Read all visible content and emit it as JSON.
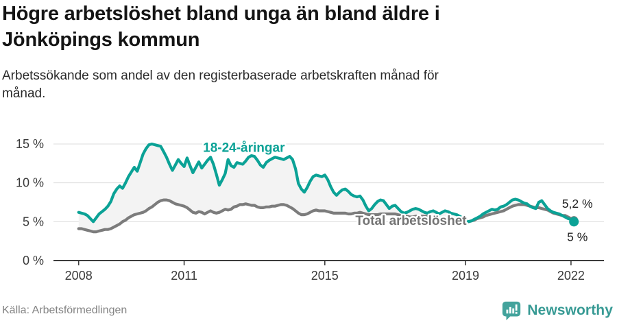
{
  "header": {
    "title": "Högre arbetslöshet bland unga än bland äldre i Jönköpings kommun",
    "subtitle": "Arbetssökande som andel av den registerbaserade arbetskraften månad för månad."
  },
  "footer": {
    "source": "Källa: Arbetsförmedlingen",
    "brand": "Newsworthy",
    "brand_color": "#379a94"
  },
  "chart_data": {
    "type": "line",
    "unit": "%",
    "between_fill": "#f3f3f3",
    "grid_color": "#dcdcdc",
    "axis_color": "#3c3c3c",
    "tick_label_color": "#3a3a3a",
    "x_axis": {
      "start": 2008.0,
      "step_months": 1,
      "ticks": [
        {
          "value": 2008,
          "label": "2008"
        },
        {
          "value": 2011,
          "label": "2011"
        },
        {
          "value": 2015,
          "label": "2015"
        },
        {
          "value": 2019,
          "label": "2019"
        },
        {
          "value": 2022,
          "label": "2022"
        }
      ]
    },
    "y_axis": {
      "ticks": [
        {
          "value": 0,
          "label": "0 %"
        },
        {
          "value": 5,
          "label": "5 %"
        },
        {
          "value": 10,
          "label": "10 %"
        },
        {
          "value": 15,
          "label": "15 %"
        }
      ],
      "range": [
        0,
        17
      ]
    },
    "series": [
      {
        "name": "18-24-åringar",
        "color": "#0ba296",
        "label_color": "#0ba296",
        "label_at": [
          2012.7,
          14.5
        ],
        "end_label": "5 %",
        "end_label_side": "below",
        "dot_radius": 7,
        "values": [
          6.2,
          6.1,
          6.0,
          5.8,
          5.4,
          5.0,
          5.5,
          6.0,
          6.3,
          6.6,
          7.0,
          7.6,
          8.6,
          9.2,
          9.6,
          9.3,
          10.0,
          10.8,
          11.4,
          12.0,
          11.5,
          12.6,
          13.7,
          14.4,
          14.9,
          15.0,
          14.9,
          14.8,
          14.7,
          14.0,
          13.3,
          12.4,
          11.6,
          12.3,
          13.0,
          12.5,
          12.1,
          13.2,
          12.2,
          11.3,
          12.0,
          12.7,
          11.9,
          12.4,
          12.9,
          13.3,
          12.4,
          11.1,
          9.7,
          10.4,
          11.2,
          13.0,
          12.2,
          12.0,
          12.6,
          12.5,
          12.4,
          12.8,
          13.3,
          13.5,
          13.4,
          12.9,
          12.3,
          12.0,
          12.6,
          12.9,
          13.1,
          13.3,
          13.2,
          13.1,
          13.0,
          13.2,
          13.4,
          13.0,
          11.8,
          9.9,
          9.2,
          8.8,
          9.4,
          10.2,
          10.8,
          11.0,
          10.9,
          10.8,
          11.0,
          10.4,
          9.5,
          8.8,
          8.4,
          8.8,
          9.1,
          9.2,
          8.9,
          8.5,
          8.3,
          8.2,
          8.3,
          7.8,
          7.0,
          6.4,
          6.7,
          7.2,
          7.6,
          7.8,
          7.7,
          7.2,
          6.7,
          7.0,
          7.1,
          6.7,
          6.3,
          6.1,
          6.2,
          6.4,
          6.6,
          6.7,
          6.6,
          6.4,
          6.2,
          6.1,
          6.3,
          6.4,
          6.2,
          6.0,
          6.2,
          6.4,
          6.3,
          6.1,
          6.0,
          5.9,
          5.7,
          5.5,
          5.2,
          5.0,
          5.1,
          5.3,
          5.5,
          5.7,
          6.0,
          6.2,
          6.4,
          6.6,
          6.5,
          6.6,
          6.9,
          7.0,
          7.2,
          7.5,
          7.8,
          7.9,
          7.8,
          7.6,
          7.4,
          7.3,
          7.0,
          6.8,
          6.7,
          7.5,
          7.7,
          7.2,
          6.7,
          6.4,
          6.2,
          6.1,
          6.0,
          5.8,
          5.6,
          5.4,
          5.3,
          5.0
        ]
      },
      {
        "name": "Total arbetslöshet",
        "color": "#7c7c7c",
        "label_color": "#747474",
        "label_at": [
          2017.45,
          5.12
        ],
        "end_label": "5,2 %",
        "end_label_side": "above",
        "dot_radius": 6,
        "values": [
          4.1,
          4.1,
          4.0,
          3.9,
          3.8,
          3.7,
          3.7,
          3.8,
          3.9,
          4.0,
          4.0,
          4.1,
          4.3,
          4.5,
          4.7,
          5.0,
          5.2,
          5.5,
          5.7,
          5.9,
          6.0,
          6.1,
          6.2,
          6.4,
          6.7,
          6.9,
          7.2,
          7.5,
          7.7,
          7.8,
          7.8,
          7.7,
          7.5,
          7.3,
          7.2,
          7.1,
          7.0,
          6.8,
          6.5,
          6.2,
          6.1,
          6.3,
          6.2,
          6.0,
          6.2,
          6.4,
          6.2,
          6.1,
          6.2,
          6.4,
          6.6,
          6.5,
          6.6,
          6.9,
          7.0,
          7.2,
          7.2,
          7.3,
          7.2,
          7.1,
          7.1,
          6.9,
          6.8,
          6.8,
          6.9,
          6.9,
          7.0,
          7.0,
          7.1,
          7.2,
          7.2,
          7.1,
          6.9,
          6.7,
          6.4,
          6.1,
          5.9,
          5.9,
          6.0,
          6.2,
          6.4,
          6.5,
          6.4,
          6.4,
          6.4,
          6.3,
          6.2,
          6.1,
          6.1,
          6.1,
          6.1,
          6.1,
          6.0,
          6.0,
          6.1,
          6.1,
          6.2,
          6.1,
          6.0,
          5.9,
          5.9,
          5.9,
          5.9,
          6.0,
          6.0,
          6.0,
          6.0,
          6.0,
          6.0,
          5.9,
          5.8,
          5.7,
          5.7,
          5.6,
          5.6,
          5.7,
          5.7,
          5.7,
          5.7,
          5.7,
          5.7,
          5.6,
          5.5,
          5.4,
          5.4,
          5.3,
          5.3,
          5.3,
          5.3,
          5.3,
          5.2,
          5.2,
          5.1,
          5.0,
          5.1,
          5.2,
          5.4,
          5.5,
          5.6,
          5.8,
          5.9,
          6.0,
          6.1,
          6.2,
          6.3,
          6.4,
          6.6,
          6.8,
          7.0,
          7.1,
          7.2,
          7.2,
          7.2,
          7.1,
          7.0,
          6.9,
          6.8,
          6.8,
          6.7,
          6.6,
          6.5,
          6.3,
          6.1,
          6.0,
          5.9,
          5.8,
          5.8,
          5.6,
          5.4,
          5.2
        ]
      }
    ]
  }
}
